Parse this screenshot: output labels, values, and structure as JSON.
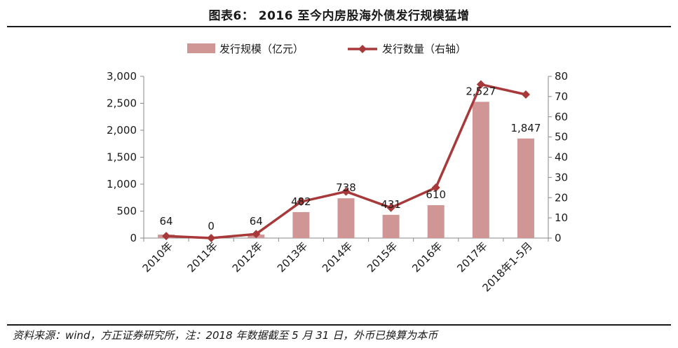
{
  "header": {
    "title": "图表6： 2016 至今内房股海外债发行规模猛增"
  },
  "footer": {
    "source": "资料来源：wind，方正证券研究所，注：2018 年数据截至 5 月 31 日，外币已换算为本币"
  },
  "colors": {
    "bar": "#D09696",
    "line": "#A8393A",
    "axis": "#888888"
  },
  "chart_data": {
    "type": "bar",
    "title": "",
    "categories": [
      "2010年",
      "2011年",
      "2012年",
      "2013年",
      "2014年",
      "2015年",
      "2016年",
      "2017年",
      "2018年1-5月"
    ],
    "series": [
      {
        "name": "发行规模（亿元）",
        "type": "bar",
        "axis": "left",
        "values": [
          64,
          0,
          64,
          482,
          738,
          431,
          610,
          2527,
          1847
        ],
        "labels": [
          "64",
          "0",
          "64",
          "482",
          "738",
          "431",
          "610",
          "2,527",
          "1,847"
        ]
      },
      {
        "name": "发行数量（右轴）",
        "type": "line",
        "axis": "right",
        "marker": "diamond",
        "values": [
          1,
          0,
          2,
          18,
          23,
          15,
          25,
          76,
          71
        ]
      }
    ],
    "ylim_left": [
      0,
      3000
    ],
    "yticks_left": [
      "0",
      "500",
      "1,000",
      "1,500",
      "2,000",
      "2,500",
      "3,000"
    ],
    "ylim_right": [
      0,
      80
    ],
    "yticks_right": [
      "0",
      "10",
      "20",
      "30",
      "40",
      "50",
      "60",
      "70",
      "80"
    ],
    "legend": "top-center",
    "grid": false
  }
}
